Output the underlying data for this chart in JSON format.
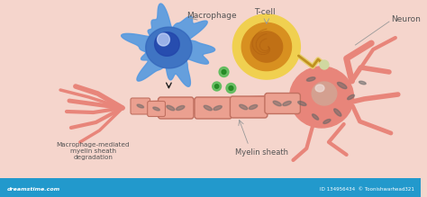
{
  "background_color": "#f5d5cc",
  "neuron_color": "#e8857a",
  "neuron_dark": "#c96a5a",
  "nucleus_color": "#d4a090",
  "macrophage_outer": "#5599e0",
  "macrophage_mid": "#3366bb",
  "macrophage_inner": "#2244aa",
  "macrophage_highlight": "#aad4ff",
  "tcell_outer": "#f0d050",
  "tcell_mid": "#d89020",
  "tcell_inner": "#c07015",
  "tcell_spiral": "#b06010",
  "axon_color": "#e8857a",
  "myelin_fill": "#eba88c",
  "myelin_edge": "#c87060",
  "bacteria_color": "#666666",
  "green_dot": "#55bb55",
  "green_dot_dark": "#228822",
  "text_color": "#555555",
  "arrow_color": "#222222",
  "bottom_bar": "#2299cc",
  "label_macrophage": "Macrophage",
  "label_tcell": "T-cell",
  "label_neuron": "Neuron",
  "label_myelin": "Myelin sheath",
  "label_degradation": "Macrophage-mediated\nmyelin sheath\ndegradation",
  "watermark_left": "dreamstime.com",
  "watermark_right": "ID 134956434  © Toonishwarhead321"
}
